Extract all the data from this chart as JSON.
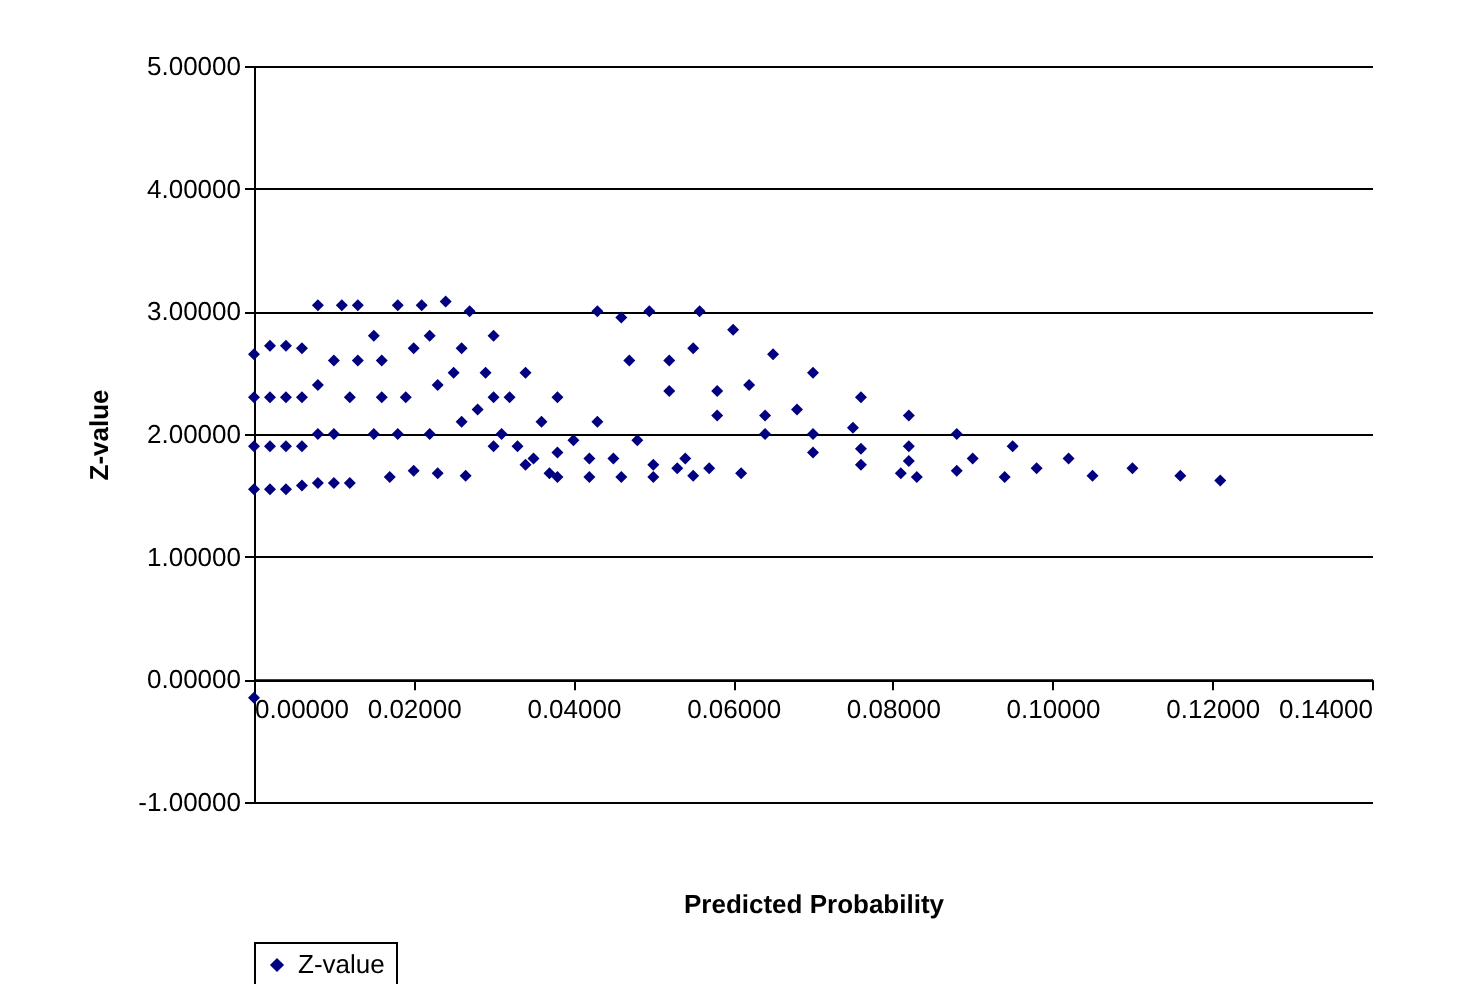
{
  "chart_data": {
    "type": "scatter",
    "xlabel": "Predicted Probability",
    "ylabel": "Z-value",
    "legend": "bottom",
    "marker": "diamond",
    "grid": "y",
    "xlim": [
      0,
      0.14
    ],
    "ylim": [
      -1,
      5
    ],
    "xticks": [
      {
        "value": 0,
        "label": "0.00000"
      },
      {
        "value": 0.02,
        "label": "0.02000"
      },
      {
        "value": 0.04,
        "label": "0.04000"
      },
      {
        "value": 0.06,
        "label": "0.06000"
      },
      {
        "value": 0.08,
        "label": "0.08000"
      },
      {
        "value": 0.1,
        "label": "0.10000"
      },
      {
        "value": 0.12,
        "label": "0.12000"
      },
      {
        "value": 0.14,
        "label": "0.14000"
      }
    ],
    "yticks": [
      {
        "value": -1,
        "label": "-1.00000"
      },
      {
        "value": 0,
        "label": "0.00000"
      },
      {
        "value": 1,
        "label": "1.00000"
      },
      {
        "value": 2,
        "label": "2.00000"
      },
      {
        "value": 3,
        "label": "3.00000"
      },
      {
        "value": 4,
        "label": "4.00000"
      },
      {
        "value": 5,
        "label": "5.00000"
      }
    ],
    "series": [
      {
        "name": "Z-value",
        "color": "#000080",
        "x": [
          0,
          0,
          0,
          0,
          0,
          0.002,
          0.002,
          0.002,
          0.002,
          0.004,
          0.004,
          0.004,
          0.004,
          0.006,
          0.006,
          0.006,
          0.006,
          0.008,
          0.008,
          0.008,
          0.01,
          0.01,
          0.012,
          0.008,
          0.01,
          0.012,
          0.015,
          0.017,
          0.013,
          0.016,
          0.019,
          0.022,
          0.0265,
          0.011,
          0.013,
          0.016,
          0.018,
          0.02,
          0.023,
          0.015,
          0.018,
          0.02,
          0.023,
          0.026,
          0.03,
          0.034,
          0.037,
          0.021,
          0.024,
          0.027,
          0.03,
          0.034,
          0.038,
          0.043,
          0.048,
          0.054,
          0.061,
          0.022,
          0.025,
          0.028,
          0.031,
          0.035,
          0.038,
          0.042,
          0.046,
          0.05,
          0.055,
          0.026,
          0.029,
          0.032,
          0.036,
          0.04,
          0.045,
          0.05,
          0.033,
          0.03,
          0.038,
          0.042,
          0.0558,
          0.06,
          0.065,
          0.07,
          0.076,
          0.082,
          0.088,
          0.095,
          0.102,
          0.11,
          0.116,
          0.121,
          0.046,
          0.052,
          0.058,
          0.064,
          0.07,
          0.076,
          0.082,
          0.088,
          0.094,
          0.0495,
          0.055,
          0.062,
          0.068,
          0.075,
          0.082,
          0.09,
          0.098,
          0.105,
          0.043,
          0.047,
          0.052,
          0.058,
          0.064,
          0.07,
          0.076,
          0.081,
          0.083,
          0.053,
          0.057
        ],
        "values": [
          -0.15,
          1.55,
          1.9,
          2.3,
          2.65,
          1.55,
          1.9,
          2.3,
          2.72,
          1.55,
          1.9,
          2.3,
          2.72,
          1.58,
          1.9,
          2.3,
          2.7,
          1.6,
          2.0,
          2.4,
          1.6,
          2.0,
          1.6,
          3.05,
          2.6,
          2.3,
          2.0,
          1.65,
          3.05,
          2.6,
          2.3,
          2.0,
          1.66,
          3.05,
          2.6,
          2.3,
          2.0,
          1.7,
          1.68,
          2.8,
          3.05,
          2.7,
          2.4,
          2.1,
          1.9,
          1.75,
          1.68,
          3.05,
          3.08,
          3.0,
          2.8,
          2.5,
          2.3,
          2.1,
          1.95,
          1.8,
          1.68,
          2.8,
          2.5,
          2.2,
          2.0,
          1.8,
          1.65,
          1.65,
          1.65,
          1.65,
          1.66,
          2.7,
          2.5,
          2.3,
          2.1,
          1.95,
          1.8,
          1.75,
          1.9,
          2.3,
          1.85,
          1.8,
          3.0,
          2.85,
          2.65,
          2.5,
          2.3,
          2.15,
          2.0,
          1.9,
          1.8,
          1.72,
          1.66,
          1.62,
          2.95,
          2.6,
          2.35,
          2.15,
          2.0,
          1.88,
          1.78,
          1.7,
          1.65,
          3.0,
          2.7,
          2.4,
          2.2,
          2.05,
          1.9,
          1.8,
          1.72,
          1.66,
          3.0,
          2.6,
          2.35,
          2.15,
          2.0,
          1.85,
          1.75,
          1.68,
          1.65,
          1.72,
          1.72
        ]
      }
    ]
  }
}
